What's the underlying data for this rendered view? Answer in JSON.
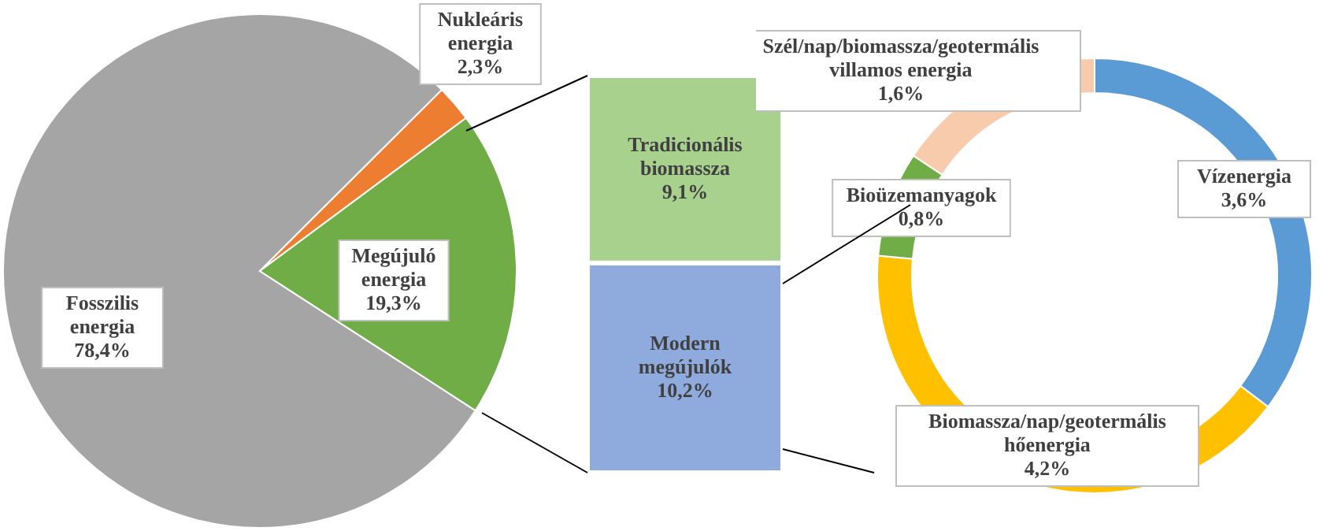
{
  "chart_data": [
    {
      "type": "pie",
      "categories": [
        "Fosszilis energia",
        "Nukleáris energia",
        "Megújuló energia"
      ],
      "values": [
        78.4,
        2.3,
        19.3
      ],
      "colors": [
        "#a5a5a5",
        "#ed7d31",
        "#70ad47"
      ],
      "value_labels": [
        "78,4%",
        "2,3%",
        "19,3%"
      ]
    },
    {
      "type": "bar",
      "stacked": true,
      "tick_labels": false,
      "categories": [
        null
      ],
      "series": [
        {
          "name": "Modern megújulók",
          "color": "#8faadc",
          "values": [
            10.2
          ],
          "value_labels": [
            "10,2%"
          ]
        },
        {
          "name": "Tradicionális biomassza",
          "color": "#a9d18e",
          "values": [
            9.1
          ],
          "value_labels": [
            "9,1%"
          ]
        }
      ]
    },
    {
      "type": "donut",
      "categories": [
        "Vízenergia",
        "Biomassza/nap/geotermális hőenergia",
        "Bioüzemanyagok",
        "Szél/nap/biomassza/geotermális villamos energia"
      ],
      "values": [
        3.6,
        4.2,
        0.8,
        1.6
      ],
      "colors": [
        "#5b9bd5",
        "#ffc000",
        "#70ad47",
        "#f8cbad"
      ],
      "value_labels": [
        "3,6%",
        "4,2%",
        "0,8%",
        "1,6%"
      ]
    }
  ]
}
